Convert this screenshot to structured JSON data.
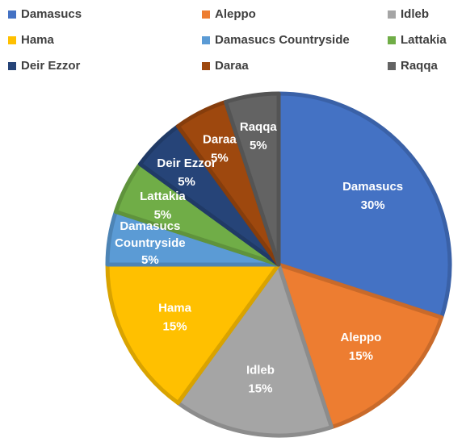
{
  "chart_data": {
    "type": "pie",
    "categories": [
      "Damasucs",
      "Aleppo",
      "Idleb",
      "Hama",
      "Damasucs Countryside",
      "Lattakia",
      "Deir Ezzor",
      "Daraa",
      "Raqqa"
    ],
    "values": [
      30,
      15,
      15,
      15,
      5,
      5,
      5,
      5,
      5
    ],
    "value_labels": [
      "30%",
      "15%",
      "15%",
      "15%",
      "5%",
      "5%",
      "5%",
      "5%",
      "5%"
    ],
    "colors": [
      "#4472c4",
      "#ed7d31",
      "#a5a5a5",
      "#ffc000",
      "#5b9bd5",
      "#70ad47",
      "#264478",
      "#9e480e",
      "#636363"
    ],
    "legend": "top"
  }
}
